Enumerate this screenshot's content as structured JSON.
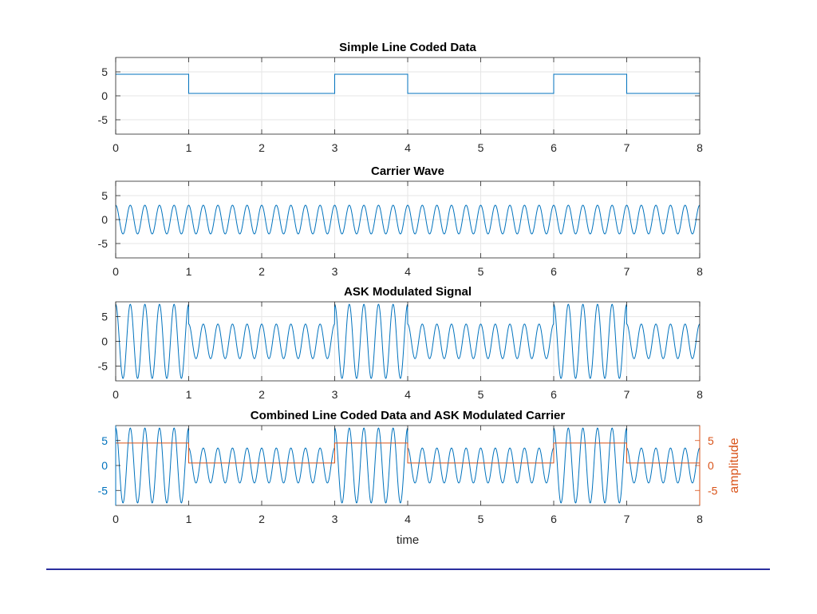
{
  "colors": {
    "blue": "#0072BD",
    "orange": "#D95319",
    "grid": "#e6e6e6",
    "axis": "#262626",
    "rule": "#2b2f9e"
  },
  "shared": {
    "xlim": [
      0,
      8
    ],
    "xticks": [
      "0",
      "1",
      "2",
      "3",
      "4",
      "5",
      "6",
      "7",
      "8"
    ]
  },
  "chart_data": [
    {
      "type": "line",
      "title": "Simple Line Coded Data",
      "xlabel": "",
      "ylabel": "",
      "xlim": [
        0,
        8
      ],
      "ylim": [
        -8,
        8
      ],
      "yticks": [
        "-5",
        "0",
        "5"
      ],
      "grid": true,
      "series": [
        {
          "values": [
            4.5,
            0.5,
            0.5,
            4.5,
            0.5,
            0.5,
            4.5,
            0.5
          ],
          "segments": [
            {
              "x0": 0,
              "x1": 1,
              "y": 4.5
            },
            {
              "x0": 1,
              "x1": 3,
              "y": 0.5
            },
            {
              "x0": 3,
              "x1": 4,
              "y": 4.5
            },
            {
              "x0": 4,
              "x1": 6,
              "y": 0.5
            },
            {
              "x0": 6,
              "x1": 7,
              "y": 4.5
            },
            {
              "x0": 7,
              "x1": 8,
              "y": 0.5
            }
          ],
          "color": "#0072BD"
        }
      ]
    },
    {
      "type": "line",
      "title": "Carrier Wave",
      "xlabel": "",
      "ylabel": "",
      "xlim": [
        0,
        8
      ],
      "ylim": [
        -8,
        8
      ],
      "yticks": [
        "-5",
        "0",
        "5"
      ],
      "grid": true,
      "series": [
        {
          "function": "3*cos(2*pi*5*t)",
          "amplitude": 3,
          "frequency_hz": 5,
          "color": "#0072BD"
        }
      ]
    },
    {
      "type": "line",
      "title": "ASK Modulated Signal",
      "xlabel": "",
      "ylabel": "",
      "xlim": [
        0,
        8
      ],
      "ylim": [
        -8,
        8
      ],
      "yticks": [
        "-5",
        "0",
        "5"
      ],
      "grid": true,
      "series": [
        {
          "function": "(data(t)+3)*cos(2*pi*5*t)",
          "amplitude_high": 7.5,
          "amplitude_low": 3.5,
          "frequency_hz": 5,
          "color": "#0072BD"
        }
      ]
    },
    {
      "type": "line",
      "title": "Combined Line Coded Data and ASK Modulated Carrier",
      "xlabel": "time",
      "ylabel": "",
      "ylabel_right": "amplitude",
      "xlim": [
        0,
        8
      ],
      "ylim": [
        -8,
        8
      ],
      "ylim_right": [
        -8,
        8
      ],
      "yticks": [
        "-5",
        "0",
        "5"
      ],
      "yticks_right": [
        "-5",
        "0",
        "5"
      ],
      "grid": false,
      "series": [
        {
          "function": "(data(t)+3)*cos(2*pi*5*t)",
          "amplitude_high": 7.5,
          "amplitude_low": 3.5,
          "frequency_hz": 5,
          "axis": "left",
          "color": "#0072BD"
        },
        {
          "segments": [
            {
              "x0": 0,
              "x1": 1,
              "y": 4.5
            },
            {
              "x0": 1,
              "x1": 3,
              "y": 0.5
            },
            {
              "x0": 3,
              "x1": 4,
              "y": 4.5
            },
            {
              "x0": 4,
              "x1": 6,
              "y": 0.5
            },
            {
              "x0": 6,
              "x1": 7,
              "y": 4.5
            },
            {
              "x0": 7,
              "x1": 8,
              "y": 0.5
            }
          ],
          "axis": "right",
          "color": "#D95319"
        }
      ]
    }
  ]
}
